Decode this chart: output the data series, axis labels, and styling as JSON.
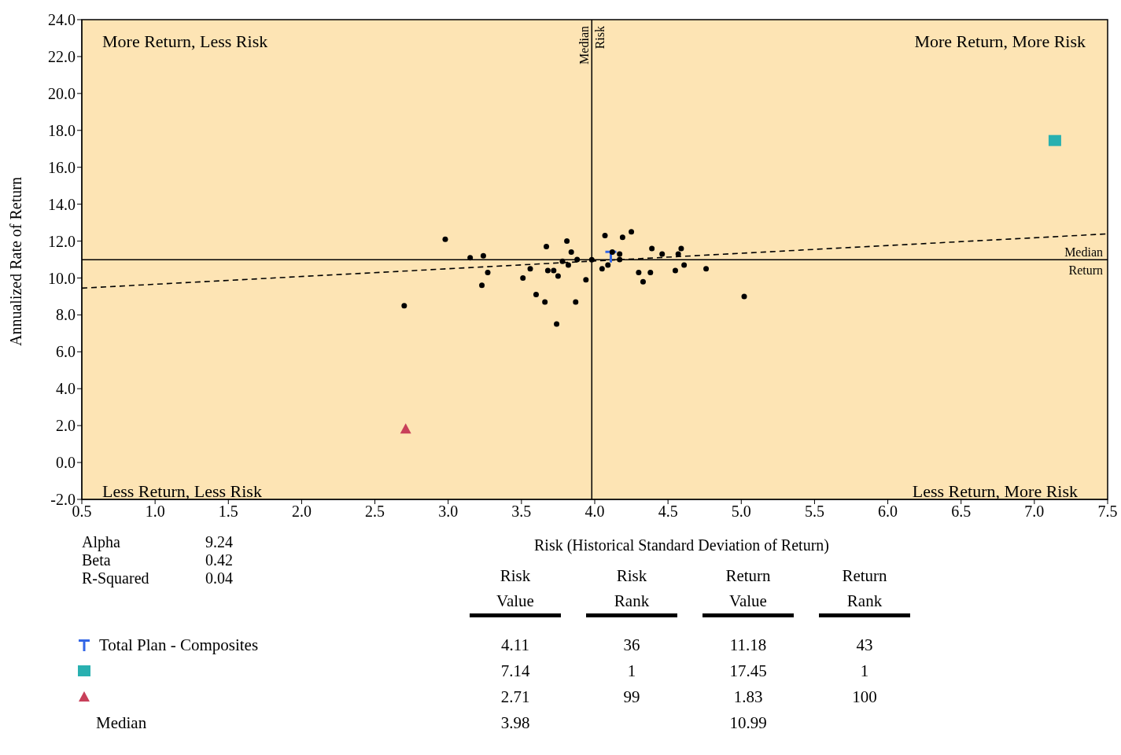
{
  "chart_data": [
    {
      "type": "scatter",
      "xlabel": "Risk (Historical Standard Deviation of Return)",
      "ylabel": "Annualized Rate of Return",
      "xlim": [
        0.5,
        7.5
      ],
      "xticks": [
        0.5,
        {
          "value": 1,
          "label": "1.0"
        },
        1.5,
        {
          "value": 2,
          "label": "2.0"
        },
        2.5,
        {
          "value": 3,
          "label": "3.0"
        },
        3.5,
        {
          "value": 4,
          "label": "4.0"
        },
        4.5,
        {
          "value": 5,
          "label": "5.0"
        },
        5.5,
        {
          "value": 6,
          "label": "6.0"
        },
        6.5,
        {
          "value": 7,
          "label": "7.0"
        },
        7.5
      ],
      "ylim": [
        -2,
        24
      ],
      "yticks": [
        {
          "value": -2,
          "label": "-2.0"
        },
        {
          "value": 0,
          "label": "0.0"
        },
        {
          "value": 2,
          "label": "2.0"
        },
        {
          "value": 4,
          "label": "4.0"
        },
        {
          "value": 6,
          "label": "6.0"
        },
        {
          "value": 8,
          "label": "8.0"
        },
        {
          "value": 10,
          "label": "10.0"
        },
        {
          "value": 12,
          "label": "12.0"
        },
        {
          "value": 14,
          "label": "14.0"
        },
        {
          "value": 16,
          "label": "16.0"
        },
        {
          "value": 18,
          "label": "18.0"
        },
        {
          "value": 20,
          "label": "20.0"
        },
        {
          "value": 22,
          "label": "22.0"
        },
        {
          "value": 24,
          "label": "24.0"
        }
      ],
      "series": [
        {
          "type": "scatter",
          "marker": "cross",
          "color": "#3366e6",
          "x": [
            4.11
          ],
          "values": [
            11.18
          ]
        },
        {
          "type": "scatter",
          "marker": "circle",
          "color": "#000000",
          "x": [
            2.98,
            3.15,
            3.24,
            3.23,
            3.27,
            2.7,
            3.51,
            3.56,
            3.6,
            3.66,
            3.67,
            3.68,
            3.72,
            3.74,
            3.75,
            3.78,
            3.81,
            3.84,
            3.82,
            3.88,
            3.87,
            3.94,
            3.98,
            4.05,
            4.07,
            4.09,
            4.12,
            4.17,
            4.17,
            4.19,
            4.25,
            4.3,
            4.33,
            4.38,
            4.39,
            4.46,
            4.55,
            4.57,
            4.59,
            4.61,
            4.76,
            5.02
          ],
          "values": [
            12.1,
            11.1,
            11.2,
            9.6,
            10.3,
            8.5,
            10.0,
            10.5,
            9.1,
            8.7,
            11.7,
            10.4,
            10.4,
            7.5,
            10.1,
            10.9,
            12.0,
            11.4,
            10.7,
            11.0,
            8.7,
            9.9,
            10.99,
            10.5,
            12.3,
            10.7,
            11.4,
            11.3,
            11.0,
            12.2,
            12.5,
            10.3,
            9.8,
            10.3,
            11.6,
            11.3,
            10.4,
            11.3,
            11.6,
            10.7,
            10.5,
            9.0
          ]
        },
        {
          "type": "scatter",
          "marker": "square",
          "color": "#29b0b0",
          "x": [
            7.14
          ],
          "values": [
            17.45
          ]
        },
        {
          "type": "scatter",
          "marker": "triangle",
          "color": "#c8405a",
          "x": [
            2.71
          ],
          "values": [
            1.83
          ]
        },
        {
          "type": "line",
          "line_style": "dashed",
          "color": "#000000",
          "x": [
            0.5,
            7.5
          ],
          "values": [
            9.45,
            12.39
          ]
        }
      ],
      "ref_lines": [
        {
          "axis": "x",
          "value": 3.98,
          "label": "Median Risk",
          "color": "#000000"
        },
        {
          "axis": "y",
          "value": 10.99,
          "label": "Median Return",
          "color": "#000000"
        }
      ],
      "annotations": [
        "More Return, Less Risk",
        "More Return, More Risk",
        "Less Return, Less Risk",
        "Less Return, More Risk",
        "Alpha 9.24",
        "Beta 0.42",
        "R-Squared 0.04"
      ]
    },
    {
      "type": "other",
      "data_labels": true,
      "categories": [
        "Risk Value",
        "Risk Rank",
        "Return Value",
        "Return Rank"
      ],
      "series": [
        {
          "name": "Total Plan - Composites",
          "color": "#3366e6",
          "values": [
            4.11,
            36,
            11.18,
            43
          ]
        },
        {
          "color": "#29b0b0",
          "values": [
            7.14,
            1,
            17.45,
            1
          ]
        },
        {
          "color": "#c8405a",
          "values": [
            2.71,
            99,
            1.83,
            100
          ]
        },
        {
          "name": "Median",
          "values": [
            3.98,
            null,
            10.99,
            null
          ]
        }
      ]
    }
  ]
}
